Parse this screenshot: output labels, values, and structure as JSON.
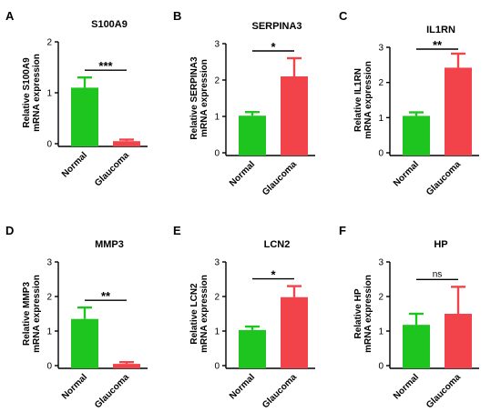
{
  "chart_data": [
    {
      "letter": "A",
      "title": "S100A9",
      "type": "bar",
      "ylabel_top": "Relative S100A9",
      "ylabel_bottom": "mRNA expression",
      "ylim": [
        0,
        2
      ],
      "ticks": [
        0,
        1,
        2
      ],
      "categories": [
        "Normal",
        "Glaucoma"
      ],
      "values": [
        1.1,
        0.05
      ],
      "errors": [
        0.2,
        0.03
      ],
      "colors": [
        "#1ec51e",
        "#f2424a"
      ],
      "significance": "***"
    },
    {
      "letter": "B",
      "title": "SERPINA3",
      "type": "bar",
      "ylabel_top": "Relative SERPINA3",
      "ylabel_bottom": "mRNA expression",
      "ylim": [
        0,
        3
      ],
      "ticks": [
        0,
        1,
        2,
        3
      ],
      "categories": [
        "Normal",
        "Glaucoma"
      ],
      "values": [
        1.02,
        2.1
      ],
      "errors": [
        0.1,
        0.5
      ],
      "colors": [
        "#1ec51e",
        "#f2424a"
      ],
      "significance": "*"
    },
    {
      "letter": "C",
      "title": "IL1RN",
      "type": "bar",
      "ylabel_top": "Relative IL1RN",
      "ylabel_bottom": "mRNA expression",
      "ylim": [
        0,
        3
      ],
      "ticks": [
        0,
        1,
        2,
        3
      ],
      "categories": [
        "Normal",
        "Glaucoma"
      ],
      "values": [
        1.05,
        2.42
      ],
      "errors": [
        0.1,
        0.4
      ],
      "colors": [
        "#1ec51e",
        "#f2424a"
      ],
      "significance": "**"
    },
    {
      "letter": "D",
      "title": "MMP3",
      "type": "bar",
      "ylabel_top": "Relative MMP3",
      "ylabel_bottom": "mRNA expression",
      "ylim": [
        0,
        3
      ],
      "ticks": [
        0,
        1,
        2,
        3
      ],
      "categories": [
        "Normal",
        "Glaucoma"
      ],
      "values": [
        1.35,
        0.05
      ],
      "errors": [
        0.33,
        0.05
      ],
      "colors": [
        "#1ec51e",
        "#f2424a"
      ],
      "significance": "**"
    },
    {
      "letter": "E",
      "title": "LCN2",
      "type": "bar",
      "ylabel_top": "Relative LCN2",
      "ylabel_bottom": "mRNA expression",
      "ylim": [
        0,
        3
      ],
      "ticks": [
        0,
        1,
        2,
        3
      ],
      "categories": [
        "Normal",
        "Glaucoma"
      ],
      "values": [
        1.03,
        1.98
      ],
      "errors": [
        0.1,
        0.32
      ],
      "colors": [
        "#1ec51e",
        "#f2424a"
      ],
      "significance": "*"
    },
    {
      "letter": "F",
      "title": "HP",
      "type": "bar",
      "ylabel_top": "Relative HP",
      "ylabel_bottom": "mRNA expression",
      "ylim": [
        0,
        3
      ],
      "ticks": [
        0,
        1,
        2,
        3
      ],
      "categories": [
        "Normal",
        "Glaucoma"
      ],
      "values": [
        1.18,
        1.5
      ],
      "errors": [
        0.32,
        0.78
      ],
      "colors": [
        "#1ec51e",
        "#f2424a"
      ],
      "significance": "ns"
    }
  ]
}
